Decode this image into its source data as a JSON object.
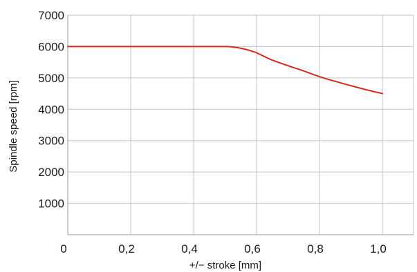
{
  "chart_data": {
    "type": "line",
    "title": "",
    "xlabel": "+/− stroke [mm]",
    "ylabel": "Spindle speed [rpm]",
    "xlim": [
      0,
      1.1
    ],
    "ylim": [
      0,
      7000
    ],
    "x_ticks": [
      0,
      0.2,
      0.4,
      0.6,
      0.8,
      1.0
    ],
    "x_tick_labels": [
      "0",
      "0,2",
      "0,4",
      "0,6",
      "0,8",
      "1,0"
    ],
    "y_ticks": [
      1000,
      2000,
      3000,
      4000,
      5000,
      6000,
      7000
    ],
    "y_tick_labels": [
      "1000",
      "2000",
      "3000",
      "4000",
      "5000",
      "6000",
      "7000"
    ],
    "grid": true,
    "legend": "none",
    "series": [
      {
        "color": "#d42a1a",
        "x": [
          0,
          0.1,
          0.2,
          0.3,
          0.4,
          0.5,
          0.52,
          0.54,
          0.56,
          0.58,
          0.6,
          0.62,
          0.64,
          0.66,
          0.7,
          0.75,
          0.8,
          0.85,
          0.9,
          0.95,
          1.0
        ],
        "y": [
          6000,
          6000,
          6000,
          6000,
          6000,
          6000,
          5990,
          5965,
          5925,
          5870,
          5800,
          5705,
          5610,
          5530,
          5390,
          5220,
          5040,
          4890,
          4750,
          4620,
          4500
        ]
      }
    ]
  }
}
